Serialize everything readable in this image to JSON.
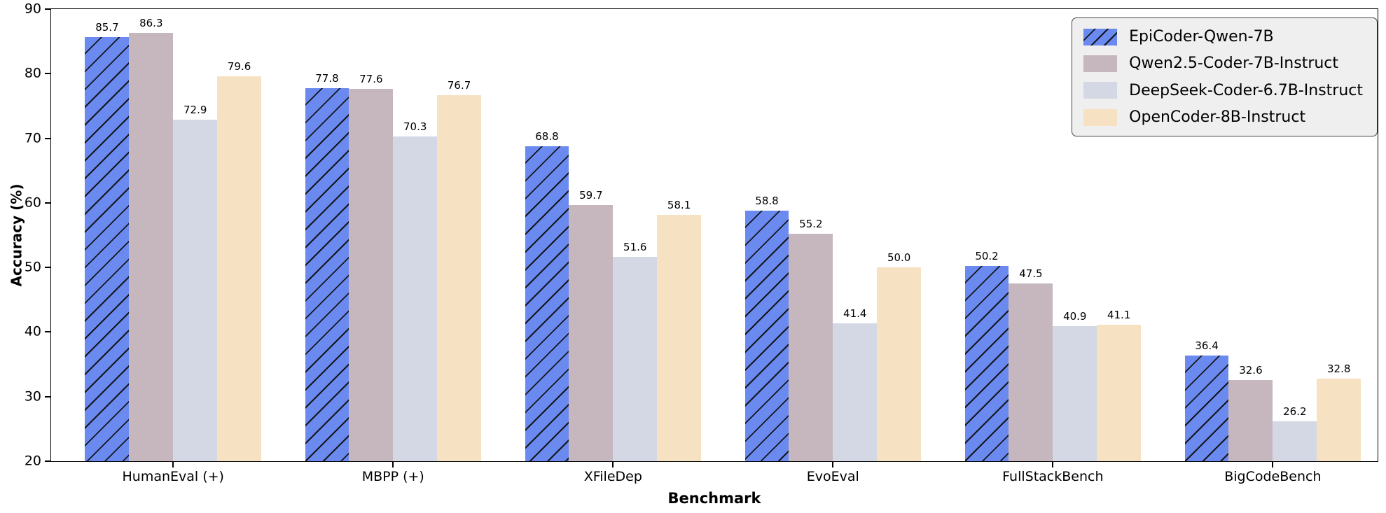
{
  "chart_data": {
    "type": "bar",
    "title": "",
    "xlabel": "Benchmark",
    "ylabel": "Accuracy (%)",
    "ylim": [
      20,
      90
    ],
    "ytick_step": 10,
    "yticks": [
      20,
      30,
      40,
      50,
      60,
      70,
      80,
      90
    ],
    "grid": false,
    "legend_position": "upper right",
    "value_label_decimals": 1,
    "categories": [
      "HumanEval (+)",
      "MBPP (+)",
      "XFileDep",
      "EvoEval",
      "FullStackBench",
      "BigCodeBench"
    ],
    "series": [
      {
        "name": "EpiCoder-Qwen-7B",
        "color": "#6b8aef",
        "hatch": "/",
        "values": [
          85.7,
          77.8,
          68.8,
          58.8,
          50.2,
          36.4
        ]
      },
      {
        "name": "Qwen2.5-Coder-7B-Instruct",
        "color": "#c5b7bd",
        "hatch": "",
        "values": [
          86.3,
          77.6,
          59.7,
          55.2,
          47.5,
          32.6
        ]
      },
      {
        "name": "DeepSeek-Coder-6.7B-Instruct",
        "color": "#d3d8e4",
        "hatch": "",
        "values": [
          72.9,
          70.3,
          51.6,
          41.4,
          40.9,
          26.2
        ]
      },
      {
        "name": "OpenCoder-8B-Instruct",
        "color": "#f6e2c3",
        "hatch": "",
        "values": [
          79.6,
          76.7,
          58.1,
          50.0,
          41.1,
          32.8
        ]
      }
    ]
  }
}
